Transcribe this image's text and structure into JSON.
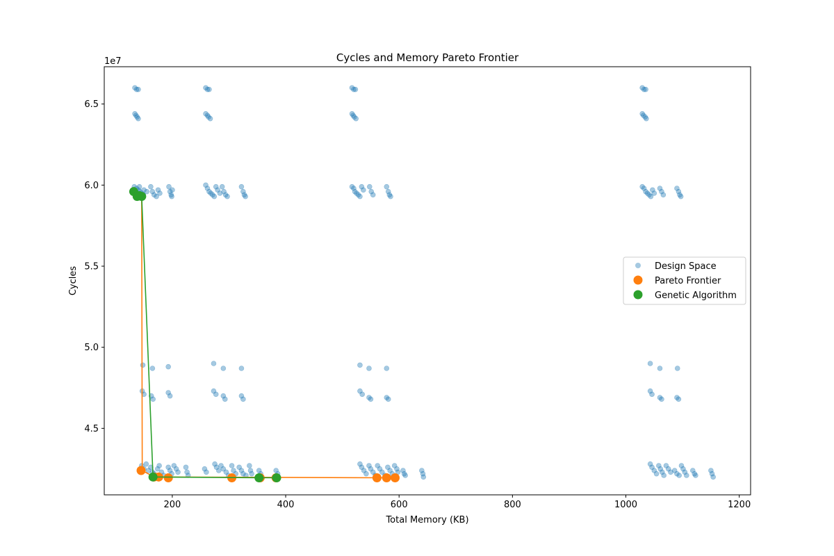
{
  "chart_data": {
    "type": "scatter",
    "title": "Cycles and Memory Pareto Frontier",
    "xlabel": "Total Memory (KB)",
    "ylabel": "Cycles",
    "y_scale_label": "1e7",
    "xlim": [
      80,
      1220
    ],
    "ylim": [
      40.9,
      67.3
    ],
    "x_ticks": [
      200,
      400,
      600,
      800,
      1000,
      1200
    ],
    "y_ticks": [
      45,
      50,
      55,
      60,
      65
    ],
    "y_tick_labels": [
      "4.5",
      "5.0",
      "5.5",
      "6.0",
      "6.5"
    ],
    "grid": false,
    "legend_position": "center-right",
    "colors": {
      "design_space": "#1f77b4",
      "pareto": "#ff7f0e",
      "genetic": "#2ca02c"
    },
    "legend": [
      "Design Space",
      "Pareto Frontier",
      "Genetic Algorithm"
    ],
    "series": [
      {
        "name": "Design Space",
        "points": [
          [
            134,
            66.0
          ],
          [
            137,
            65.9
          ],
          [
            140,
            65.9
          ],
          [
            134,
            64.4
          ],
          [
            136,
            64.3
          ],
          [
            138,
            64.2
          ],
          [
            140,
            64.1
          ],
          [
            259,
            66.0
          ],
          [
            262,
            65.9
          ],
          [
            265,
            65.9
          ],
          [
            259,
            64.4
          ],
          [
            262,
            64.3
          ],
          [
            264,
            64.2
          ],
          [
            267,
            64.1
          ],
          [
            517,
            66.0
          ],
          [
            520,
            65.9
          ],
          [
            523,
            65.9
          ],
          [
            517,
            64.4
          ],
          [
            519,
            64.3
          ],
          [
            521,
            64.2
          ],
          [
            524,
            64.1
          ],
          [
            1029,
            66.0
          ],
          [
            1032,
            65.9
          ],
          [
            1035,
            65.9
          ],
          [
            1029,
            64.4
          ],
          [
            1031,
            64.3
          ],
          [
            1034,
            64.2
          ],
          [
            1036,
            64.1
          ],
          [
            133,
            59.9
          ],
          [
            137,
            59.8
          ],
          [
            140,
            59.7
          ],
          [
            143,
            59.6
          ],
          [
            146,
            59.5
          ],
          [
            149,
            59.4
          ],
          [
            136,
            59.5
          ],
          [
            142,
            59.9
          ],
          [
            150,
            59.7
          ],
          [
            155,
            59.6
          ],
          [
            162,
            59.9
          ],
          [
            165,
            59.6
          ],
          [
            168,
            59.4
          ],
          [
            172,
            59.3
          ],
          [
            175,
            59.7
          ],
          [
            178,
            59.5
          ],
          [
            194,
            59.9
          ],
          [
            196,
            59.6
          ],
          [
            198,
            59.4
          ],
          [
            199,
            59.3
          ],
          [
            200,
            59.7
          ],
          [
            259,
            60.0
          ],
          [
            262,
            59.8
          ],
          [
            265,
            59.6
          ],
          [
            268,
            59.5
          ],
          [
            271,
            59.4
          ],
          [
            274,
            59.3
          ],
          [
            277,
            59.9
          ],
          [
            280,
            59.7
          ],
          [
            284,
            59.5
          ],
          [
            288,
            59.9
          ],
          [
            291,
            59.6
          ],
          [
            294,
            59.4
          ],
          [
            297,
            59.3
          ],
          [
            322,
            59.9
          ],
          [
            325,
            59.6
          ],
          [
            327,
            59.4
          ],
          [
            329,
            59.3
          ],
          [
            517,
            59.9
          ],
          [
            520,
            59.8
          ],
          [
            522,
            59.6
          ],
          [
            525,
            59.5
          ],
          [
            528,
            59.4
          ],
          [
            531,
            59.3
          ],
          [
            534,
            59.9
          ],
          [
            537,
            59.7
          ],
          [
            548,
            59.9
          ],
          [
            551,
            59.6
          ],
          [
            554,
            59.4
          ],
          [
            578,
            59.9
          ],
          [
            581,
            59.6
          ],
          [
            583,
            59.4
          ],
          [
            585,
            59.3
          ],
          [
            1029,
            59.9
          ],
          [
            1032,
            59.8
          ],
          [
            1035,
            59.6
          ],
          [
            1038,
            59.5
          ],
          [
            1041,
            59.4
          ],
          [
            1044,
            59.3
          ],
          [
            1047,
            59.7
          ],
          [
            1050,
            59.5
          ],
          [
            1060,
            59.8
          ],
          [
            1063,
            59.6
          ],
          [
            1066,
            59.4
          ],
          [
            1090,
            59.8
          ],
          [
            1093,
            59.6
          ],
          [
            1095,
            59.4
          ],
          [
            1097,
            59.3
          ],
          [
            148,
            48.9
          ],
          [
            165,
            48.7
          ],
          [
            193,
            48.8
          ],
          [
            273,
            49.0
          ],
          [
            290,
            48.7
          ],
          [
            322,
            48.7
          ],
          [
            531,
            48.9
          ],
          [
            547,
            48.7
          ],
          [
            578,
            48.7
          ],
          [
            1043,
            49.0
          ],
          [
            1060,
            48.7
          ],
          [
            1091,
            48.7
          ],
          [
            147,
            47.3
          ],
          [
            150,
            47.1
          ],
          [
            163,
            47.0
          ],
          [
            166,
            46.8
          ],
          [
            193,
            47.2
          ],
          [
            196,
            47.0
          ],
          [
            273,
            47.3
          ],
          [
            277,
            47.1
          ],
          [
            290,
            47.0
          ],
          [
            293,
            46.8
          ],
          [
            322,
            47.0
          ],
          [
            325,
            46.8
          ],
          [
            531,
            47.3
          ],
          [
            535,
            47.1
          ],
          [
            547,
            46.9
          ],
          [
            550,
            46.8
          ],
          [
            578,
            46.9
          ],
          [
            581,
            46.8
          ],
          [
            1043,
            47.3
          ],
          [
            1046,
            47.1
          ],
          [
            1060,
            46.9
          ],
          [
            1063,
            46.8
          ],
          [
            1090,
            46.9
          ],
          [
            1093,
            46.8
          ],
          [
            146,
            42.7
          ],
          [
            150,
            42.5
          ],
          [
            154,
            42.8
          ],
          [
            158,
            42.4
          ],
          [
            162,
            42.6
          ],
          [
            165,
            42.3
          ],
          [
            168,
            42.2
          ],
          [
            171,
            42.1
          ],
          [
            174,
            42.5
          ],
          [
            177,
            42.7
          ],
          [
            181,
            42.3
          ],
          [
            185,
            42.1
          ],
          [
            193,
            42.6
          ],
          [
            196,
            42.4
          ],
          [
            199,
            42.2
          ],
          [
            203,
            42.7
          ],
          [
            207,
            42.5
          ],
          [
            210,
            42.3
          ],
          [
            224,
            42.6
          ],
          [
            226,
            42.3
          ],
          [
            228,
            42.1
          ],
          [
            257,
            42.5
          ],
          [
            260,
            42.3
          ],
          [
            275,
            42.8
          ],
          [
            278,
            42.6
          ],
          [
            282,
            42.4
          ],
          [
            286,
            42.7
          ],
          [
            290,
            42.5
          ],
          [
            295,
            42.3
          ],
          [
            299,
            42.1
          ],
          [
            305,
            42.7
          ],
          [
            308,
            42.4
          ],
          [
            312,
            42.2
          ],
          [
            318,
            42.6
          ],
          [
            322,
            42.4
          ],
          [
            325,
            42.2
          ],
          [
            330,
            42.1
          ],
          [
            336,
            42.7
          ],
          [
            338,
            42.4
          ],
          [
            340,
            42.2
          ],
          [
            353,
            42.4
          ],
          [
            356,
            42.2
          ],
          [
            383,
            42.4
          ],
          [
            386,
            42.2
          ],
          [
            531,
            42.8
          ],
          [
            534,
            42.6
          ],
          [
            538,
            42.4
          ],
          [
            542,
            42.2
          ],
          [
            547,
            42.7
          ],
          [
            550,
            42.5
          ],
          [
            554,
            42.3
          ],
          [
            558,
            42.1
          ],
          [
            562,
            42.7
          ],
          [
            566,
            42.5
          ],
          [
            570,
            42.3
          ],
          [
            575,
            42.1
          ],
          [
            580,
            42.6
          ],
          [
            584,
            42.4
          ],
          [
            588,
            42.2
          ],
          [
            592,
            42.7
          ],
          [
            596,
            42.5
          ],
          [
            598,
            42.3
          ],
          [
            607,
            42.4
          ],
          [
            609,
            42.2
          ],
          [
            611,
            42.1
          ],
          [
            640,
            42.4
          ],
          [
            642,
            42.2
          ],
          [
            643,
            42.0
          ],
          [
            1043,
            42.8
          ],
          [
            1046,
            42.6
          ],
          [
            1050,
            42.4
          ],
          [
            1054,
            42.2
          ],
          [
            1058,
            42.7
          ],
          [
            1061,
            42.5
          ],
          [
            1064,
            42.3
          ],
          [
            1067,
            42.1
          ],
          [
            1071,
            42.7
          ],
          [
            1075,
            42.5
          ],
          [
            1079,
            42.3
          ],
          [
            1086,
            42.4
          ],
          [
            1090,
            42.2
          ],
          [
            1094,
            42.1
          ],
          [
            1098,
            42.7
          ],
          [
            1101,
            42.5
          ],
          [
            1104,
            42.3
          ],
          [
            1107,
            42.1
          ],
          [
            1118,
            42.4
          ],
          [
            1121,
            42.2
          ],
          [
            1123,
            42.1
          ],
          [
            1150,
            42.4
          ],
          [
            1152,
            42.2
          ],
          [
            1154,
            42.0
          ]
        ]
      },
      {
        "name": "Pareto Frontier",
        "points": [
          [
            145,
            42.4
          ],
          [
            168,
            42.0
          ],
          [
            176,
            42.0
          ],
          [
            193,
            41.95
          ],
          [
            305,
            41.95
          ],
          [
            355,
            41.95
          ],
          [
            383,
            41.95
          ],
          [
            561,
            41.95
          ],
          [
            578,
            41.95
          ],
          [
            593,
            41.95
          ]
        ],
        "line": [
          [
            133,
            59.6
          ],
          [
            141,
            59.4
          ],
          [
            146,
            59.3
          ],
          [
            147,
            42.4
          ],
          [
            168,
            42.0
          ],
          [
            193,
            42.0
          ],
          [
            593,
            41.95
          ]
        ]
      },
      {
        "name": "Genetic Algorithm",
        "points": [
          [
            132,
            59.6
          ],
          [
            138,
            59.3
          ],
          [
            142,
            59.35
          ],
          [
            146,
            59.3
          ],
          [
            166,
            42.0
          ],
          [
            353,
            41.95
          ],
          [
            384,
            41.95
          ]
        ],
        "line": [
          [
            132,
            59.6
          ],
          [
            138,
            59.3
          ],
          [
            146,
            59.3
          ],
          [
            166,
            42.0
          ],
          [
            170,
            42.0
          ],
          [
            384,
            41.95
          ]
        ]
      }
    ]
  }
}
